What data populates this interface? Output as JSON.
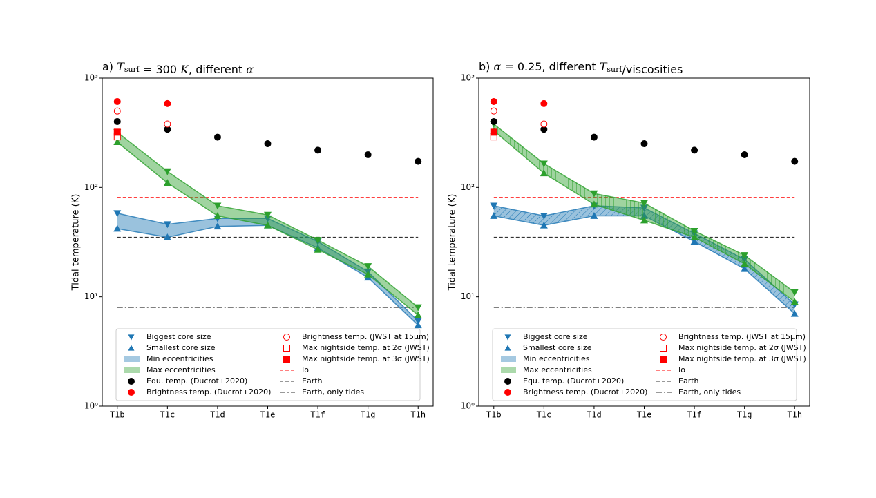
{
  "chart_data": [
    {
      "type": "line",
      "title_parts": [
        {
          "text": "a) "
        },
        {
          "text": "T",
          "style": "italic"
        },
        {
          "text": "surf",
          "style": "sub"
        },
        {
          "text": " = 300 "
        },
        {
          "text": "K",
          "style": "italic"
        },
        {
          "text": ", different "
        },
        {
          "text": "α",
          "style": "italic"
        }
      ],
      "ylabel": "Tidal temperature (K)",
      "log_y": true,
      "categories": [
        "T1b",
        "T1c",
        "T1d",
        "T1e",
        "T1f",
        "T1g",
        "T1h"
      ],
      "ylim": [
        1,
        1000
      ],
      "yticks": [
        {
          "value": 1,
          "label": "10⁰"
        },
        {
          "value": 10,
          "label": "10¹"
        },
        {
          "value": 100,
          "label": "10²"
        },
        {
          "value": 1000,
          "label": "10³"
        }
      ],
      "hatch": false,
      "core_markers": [
        {
          "name": "Biggest core size",
          "marker": "down",
          "color": "#1f77b4"
        },
        {
          "name": "Smallest core size",
          "marker": "up",
          "color": "#1f77b4"
        }
      ],
      "bands": [
        {
          "name": "Min eccentricities",
          "color": "#1f77b4",
          "upper": [
            58,
            46,
            52,
            52,
            32,
            17,
            6
          ],
          "lower": [
            42,
            35,
            44,
            45,
            28,
            15,
            5.5
          ]
        },
        {
          "name": "Max eccentricities",
          "color": "#2ca02c",
          "upper": [
            320,
            140,
            68,
            56,
            33,
            19,
            8
          ],
          "lower": [
            260,
            110,
            55,
            45,
            27,
            16,
            6.8
          ]
        }
      ],
      "points": [
        {
          "name": "Equ. temp. (Ducrot+2020)",
          "color": "#000000",
          "marker": "circle",
          "values": [
            400,
            340,
            288,
            251,
            219,
            199,
            173
          ]
        },
        {
          "name": "Brightness temp. (Ducrot+2020)",
          "color": "#ff0000",
          "marker": "circle",
          "values": [
            610,
            585,
            null,
            null,
            null,
            null,
            null
          ]
        },
        {
          "name": "Brightness temp. (JWST at 15μm)",
          "color": "#ff0000",
          "marker": "open-circle",
          "values": [
            500,
            380,
            null,
            null,
            null,
            null,
            null
          ]
        },
        {
          "name": "Max nightside temp. at 2σ (JWST)",
          "color": "#ff0000",
          "marker": "open-square",
          "values": [
            290,
            null,
            null,
            null,
            null,
            null,
            null
          ]
        },
        {
          "name": "Max nightside temp. at 3σ (JWST)",
          "color": "#ff0000",
          "marker": "square",
          "values": [
            320,
            null,
            null,
            null,
            null,
            null,
            null
          ]
        }
      ],
      "hlines": [
        {
          "name": "Io",
          "color": "#ff0000",
          "dash": "dashed",
          "value": 81
        },
        {
          "name": "Earth",
          "color": "#333333",
          "dash": "dashed",
          "value": 35
        },
        {
          "name": "Earth, only tides",
          "color": "#333333",
          "dash": "dashdot",
          "value": 8
        }
      ]
    },
    {
      "type": "line",
      "title_parts": [
        {
          "text": "b) "
        },
        {
          "text": "α",
          "style": "italic"
        },
        {
          "text": " = 0.25, different "
        },
        {
          "text": "T",
          "style": "italic"
        },
        {
          "text": "surf",
          "style": "sub"
        },
        {
          "text": "/viscosities"
        }
      ],
      "ylabel": "Tidal temperature (K)",
      "log_y": true,
      "categories": [
        "T1b",
        "T1c",
        "T1d",
        "T1e",
        "T1f",
        "T1g",
        "T1h"
      ],
      "ylim": [
        1,
        1000
      ],
      "yticks": [
        {
          "value": 1,
          "label": "10⁰"
        },
        {
          "value": 10,
          "label": "10¹"
        },
        {
          "value": 100,
          "label": "10²"
        },
        {
          "value": 1000,
          "label": "10³"
        }
      ],
      "hatch": true,
      "core_markers": [
        {
          "name": "Biggest core size",
          "marker": "down",
          "color": "#1f77b4"
        },
        {
          "name": "Smallest core size",
          "marker": "up",
          "color": "#1f77b4"
        }
      ],
      "bands": [
        {
          "name": "Min eccentricities",
          "color": "#1f77b4",
          "upper": [
            68,
            55,
            68,
            65,
            38,
            22,
            8.5
          ],
          "lower": [
            55,
            45,
            55,
            55,
            32,
            18,
            7
          ]
        },
        {
          "name": "Max eccentricities",
          "color": "#2ca02c",
          "upper": [
            380,
            165,
            88,
            72,
            40,
            24,
            11
          ],
          "lower": [
            330,
            135,
            70,
            50,
            35,
            20,
            9
          ]
        }
      ],
      "points": [
        {
          "name": "Equ. temp. (Ducrot+2020)",
          "color": "#000000",
          "marker": "circle",
          "values": [
            400,
            340,
            288,
            251,
            219,
            199,
            173
          ]
        },
        {
          "name": "Brightness temp. (Ducrot+2020)",
          "color": "#ff0000",
          "marker": "circle",
          "values": [
            610,
            585,
            null,
            null,
            null,
            null,
            null
          ]
        },
        {
          "name": "Brightness temp. (JWST at 15μm)",
          "color": "#ff0000",
          "marker": "open-circle",
          "values": [
            500,
            380,
            null,
            null,
            null,
            null,
            null
          ]
        },
        {
          "name": "Max nightside temp. at 2σ (JWST)",
          "color": "#ff0000",
          "marker": "open-square",
          "values": [
            290,
            null,
            null,
            null,
            null,
            null,
            null
          ]
        },
        {
          "name": "Max nightside temp. at 3σ (JWST)",
          "color": "#ff0000",
          "marker": "square",
          "values": [
            320,
            null,
            null,
            null,
            null,
            null,
            null
          ]
        }
      ],
      "hlines": [
        {
          "name": "Io",
          "color": "#ff0000",
          "dash": "dashed",
          "value": 81
        },
        {
          "name": "Earth",
          "color": "#333333",
          "dash": "dashed",
          "value": 35
        },
        {
          "name": "Earth, only tides",
          "color": "#333333",
          "dash": "dashdot",
          "value": 8
        }
      ]
    }
  ]
}
